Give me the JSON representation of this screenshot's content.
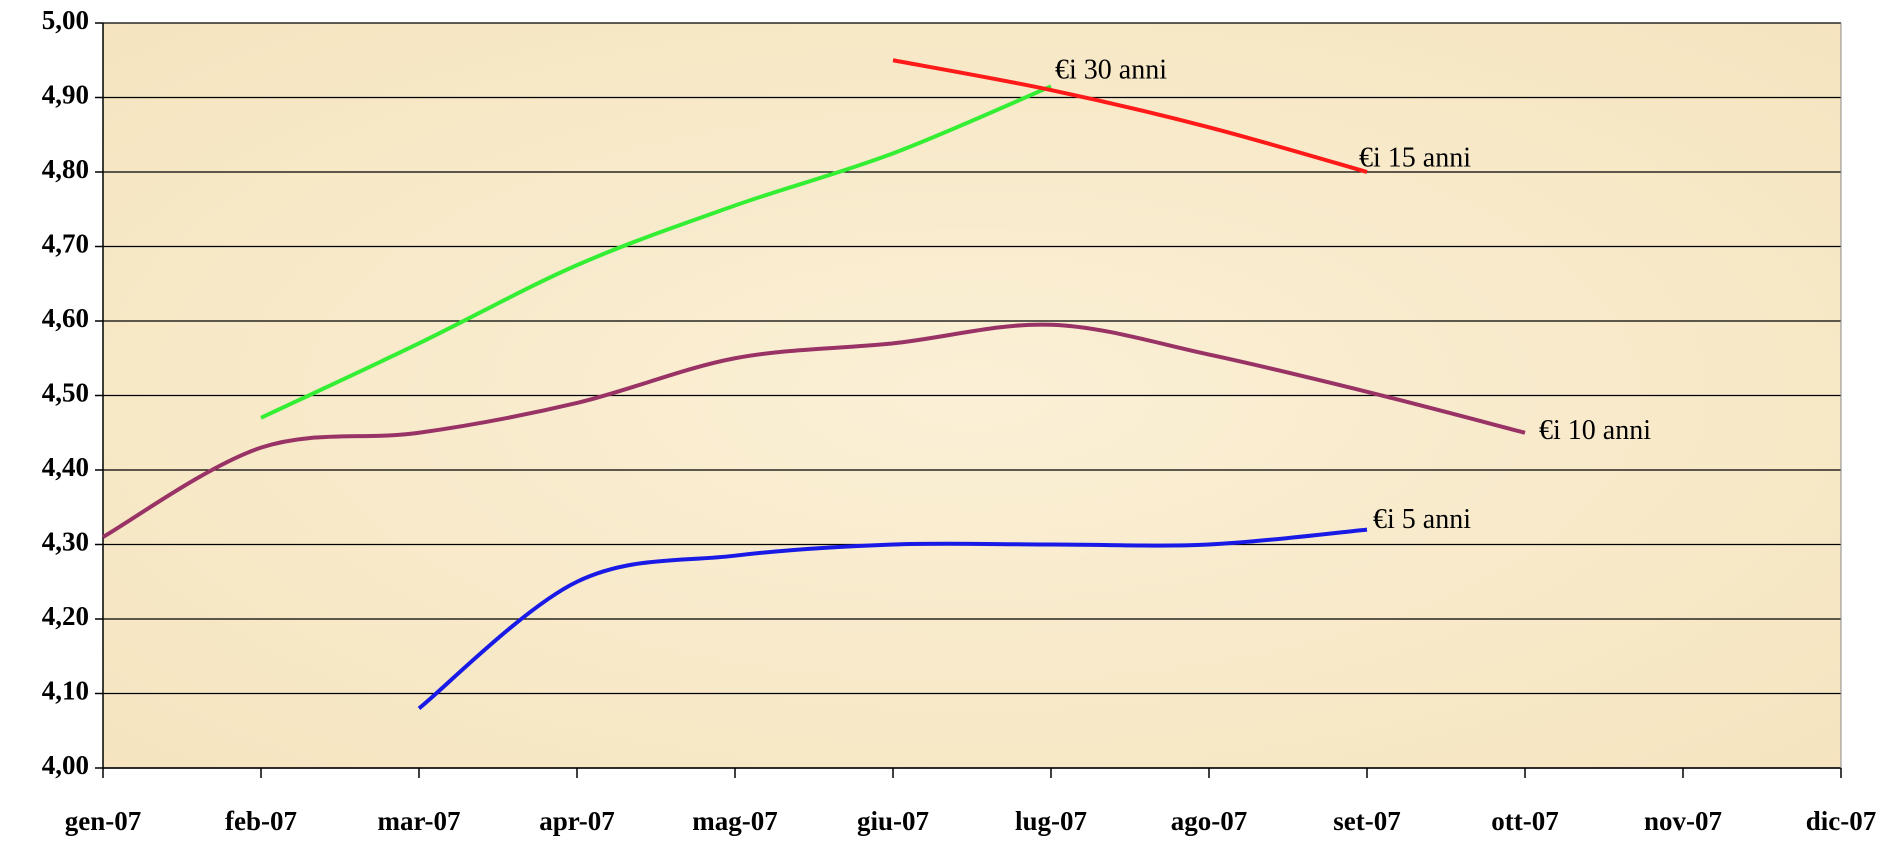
{
  "chart_data": {
    "type": "line",
    "categories": [
      "gen-07",
      "feb-07",
      "mar-07",
      "apr-07",
      "mag-07",
      "giu-07",
      "lug-07",
      "ago-07",
      "set-07",
      "ott-07",
      "nov-07",
      "dic-07"
    ],
    "series": [
      {
        "name": "€i 30 anni",
        "color": "#33ee33",
        "values": [
          null,
          4.47,
          4.57,
          4.675,
          4.755,
          4.825,
          4.915,
          null,
          null,
          null,
          null,
          null
        ]
      },
      {
        "name": "€i 15 anni",
        "color": "#ff1a1a",
        "values": [
          null,
          null,
          null,
          null,
          null,
          4.95,
          4.91,
          4.86,
          4.8,
          null,
          null,
          null
        ]
      },
      {
        "name": "€i 10 anni",
        "color": "#993366",
        "values": [
          4.31,
          4.43,
          4.45,
          4.49,
          4.55,
          4.57,
          4.595,
          4.555,
          4.505,
          4.45,
          null,
          null
        ]
      },
      {
        "name": "€i 5 anni",
        "color": "#1a1ae6",
        "values": [
          null,
          null,
          4.08,
          4.25,
          4.285,
          4.3,
          4.3,
          4.3,
          4.32,
          null,
          null,
          null
        ]
      }
    ],
    "ylim": [
      4.0,
      5.0
    ],
    "yticks": [
      {
        "value": 4.0,
        "label": "4,00"
      },
      {
        "value": 4.1,
        "label": "4,10"
      },
      {
        "value": 4.2,
        "label": "4,20"
      },
      {
        "value": 4.3,
        "label": "4,30"
      },
      {
        "value": 4.4,
        "label": "4,40"
      },
      {
        "value": 4.5,
        "label": "4,50"
      },
      {
        "value": 4.6,
        "label": "4,60"
      },
      {
        "value": 4.7,
        "label": "4,70"
      },
      {
        "value": 4.8,
        "label": "4,80"
      },
      {
        "value": 4.9,
        "label": "4,90"
      },
      {
        "value": 5.0,
        "label": "5,00"
      }
    ],
    "grid": true
  }
}
